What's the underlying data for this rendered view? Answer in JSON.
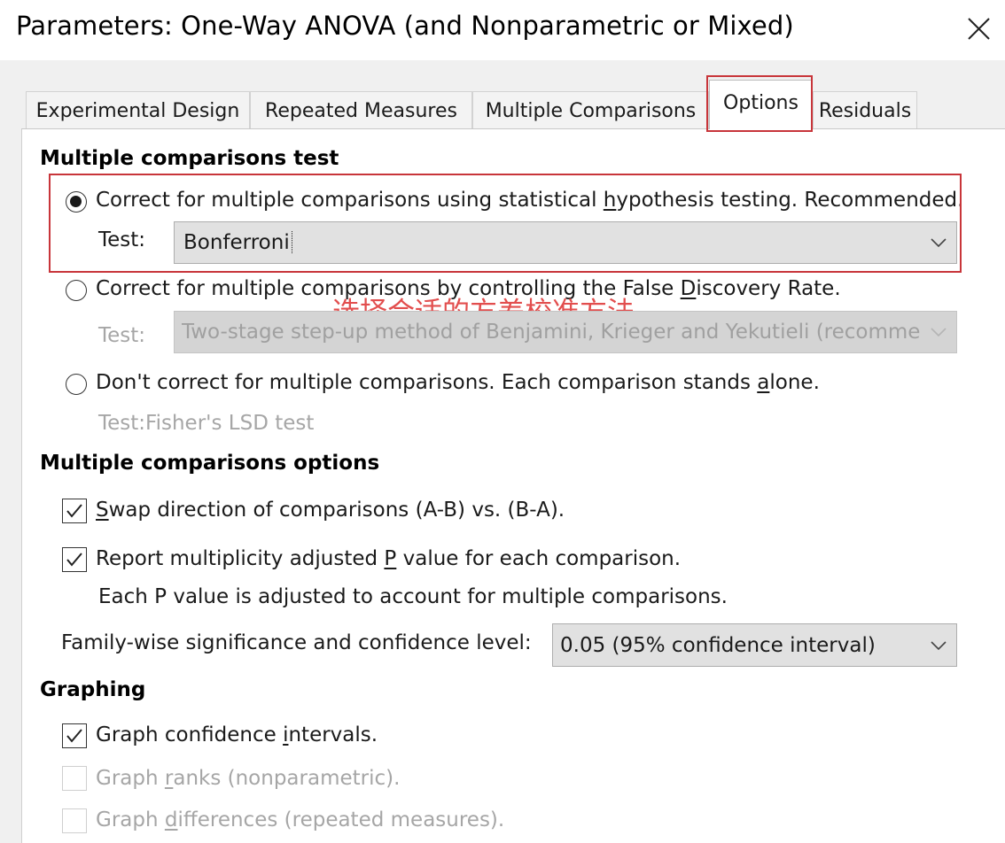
{
  "window": {
    "title": "Parameters: One-Way ANOVA (and Nonparametric or Mixed)"
  },
  "tabs": [
    {
      "label": "Experimental Design",
      "active": false
    },
    {
      "label": "Repeated Measures",
      "active": false
    },
    {
      "label": "Multiple Comparisons",
      "active": false
    },
    {
      "label": "Options",
      "active": true
    },
    {
      "label": "Residuals",
      "active": false
    }
  ],
  "test_section": {
    "heading": "Multiple comparisons test",
    "option1": {
      "pre": "Correct for multiple comparisons using statistical ",
      "ul": "h",
      "post": "ypothesis testing. Recommended.",
      "selected": true
    },
    "test_label": "Test:",
    "test1_value": "Bonferroni",
    "option2": {
      "pre": "Correct for multiple comparisons by controlling the False ",
      "ul": "D",
      "post": "iscovery Rate.",
      "selected": false
    },
    "test2_value": "Two-stage step-up method of Benjamini, Krieger and Yekutieli (recommended)",
    "option3": {
      "pre": "Don't correct for multiple comparisons. Each comparison stands ",
      "ul": "a",
      "post": "lone.",
      "selected": false
    },
    "test3_label": "Test:",
    "test3_value": "Fisher's LSD test",
    "annotation": "选择合适的方差校准方法"
  },
  "options_section": {
    "heading": "Multiple comparisons options",
    "swap": {
      "pre": "",
      "ul": "S",
      "post": "wap direction of comparisons (A-B) vs. (B-A).",
      "checked": true
    },
    "report": {
      "pre": "Report multiplicity adjusted ",
      "ul": "P",
      "post": " value for each comparison.",
      "checked": true
    },
    "report_note": "Each P value is adjusted to account for multiple comparisons.",
    "family_label": "Family-wise significance and confidence level:",
    "family_value": "0.05  (95% confidence interval)"
  },
  "graphing_section": {
    "heading": "Graphing",
    "ci": {
      "pre": "Graph confidence ",
      "ul": "i",
      "post": "ntervals.",
      "checked": true,
      "enabled": true
    },
    "ranks": {
      "pre": "Graph ",
      "ul": "r",
      "post": "anks (nonparametric).",
      "checked": false,
      "enabled": false
    },
    "diffs": {
      "pre": "Graph ",
      "ul": "d",
      "post": "ifferences (repeated measures).",
      "checked": false,
      "enabled": false
    }
  },
  "icons": {
    "close": "close-icon",
    "dropdown": "chevron-down-icon",
    "check": "check-icon"
  },
  "colors": {
    "annotation_red": "#c8353a",
    "annotation_text": "#e0403f",
    "dialog_bg": "#f0f0f0"
  }
}
